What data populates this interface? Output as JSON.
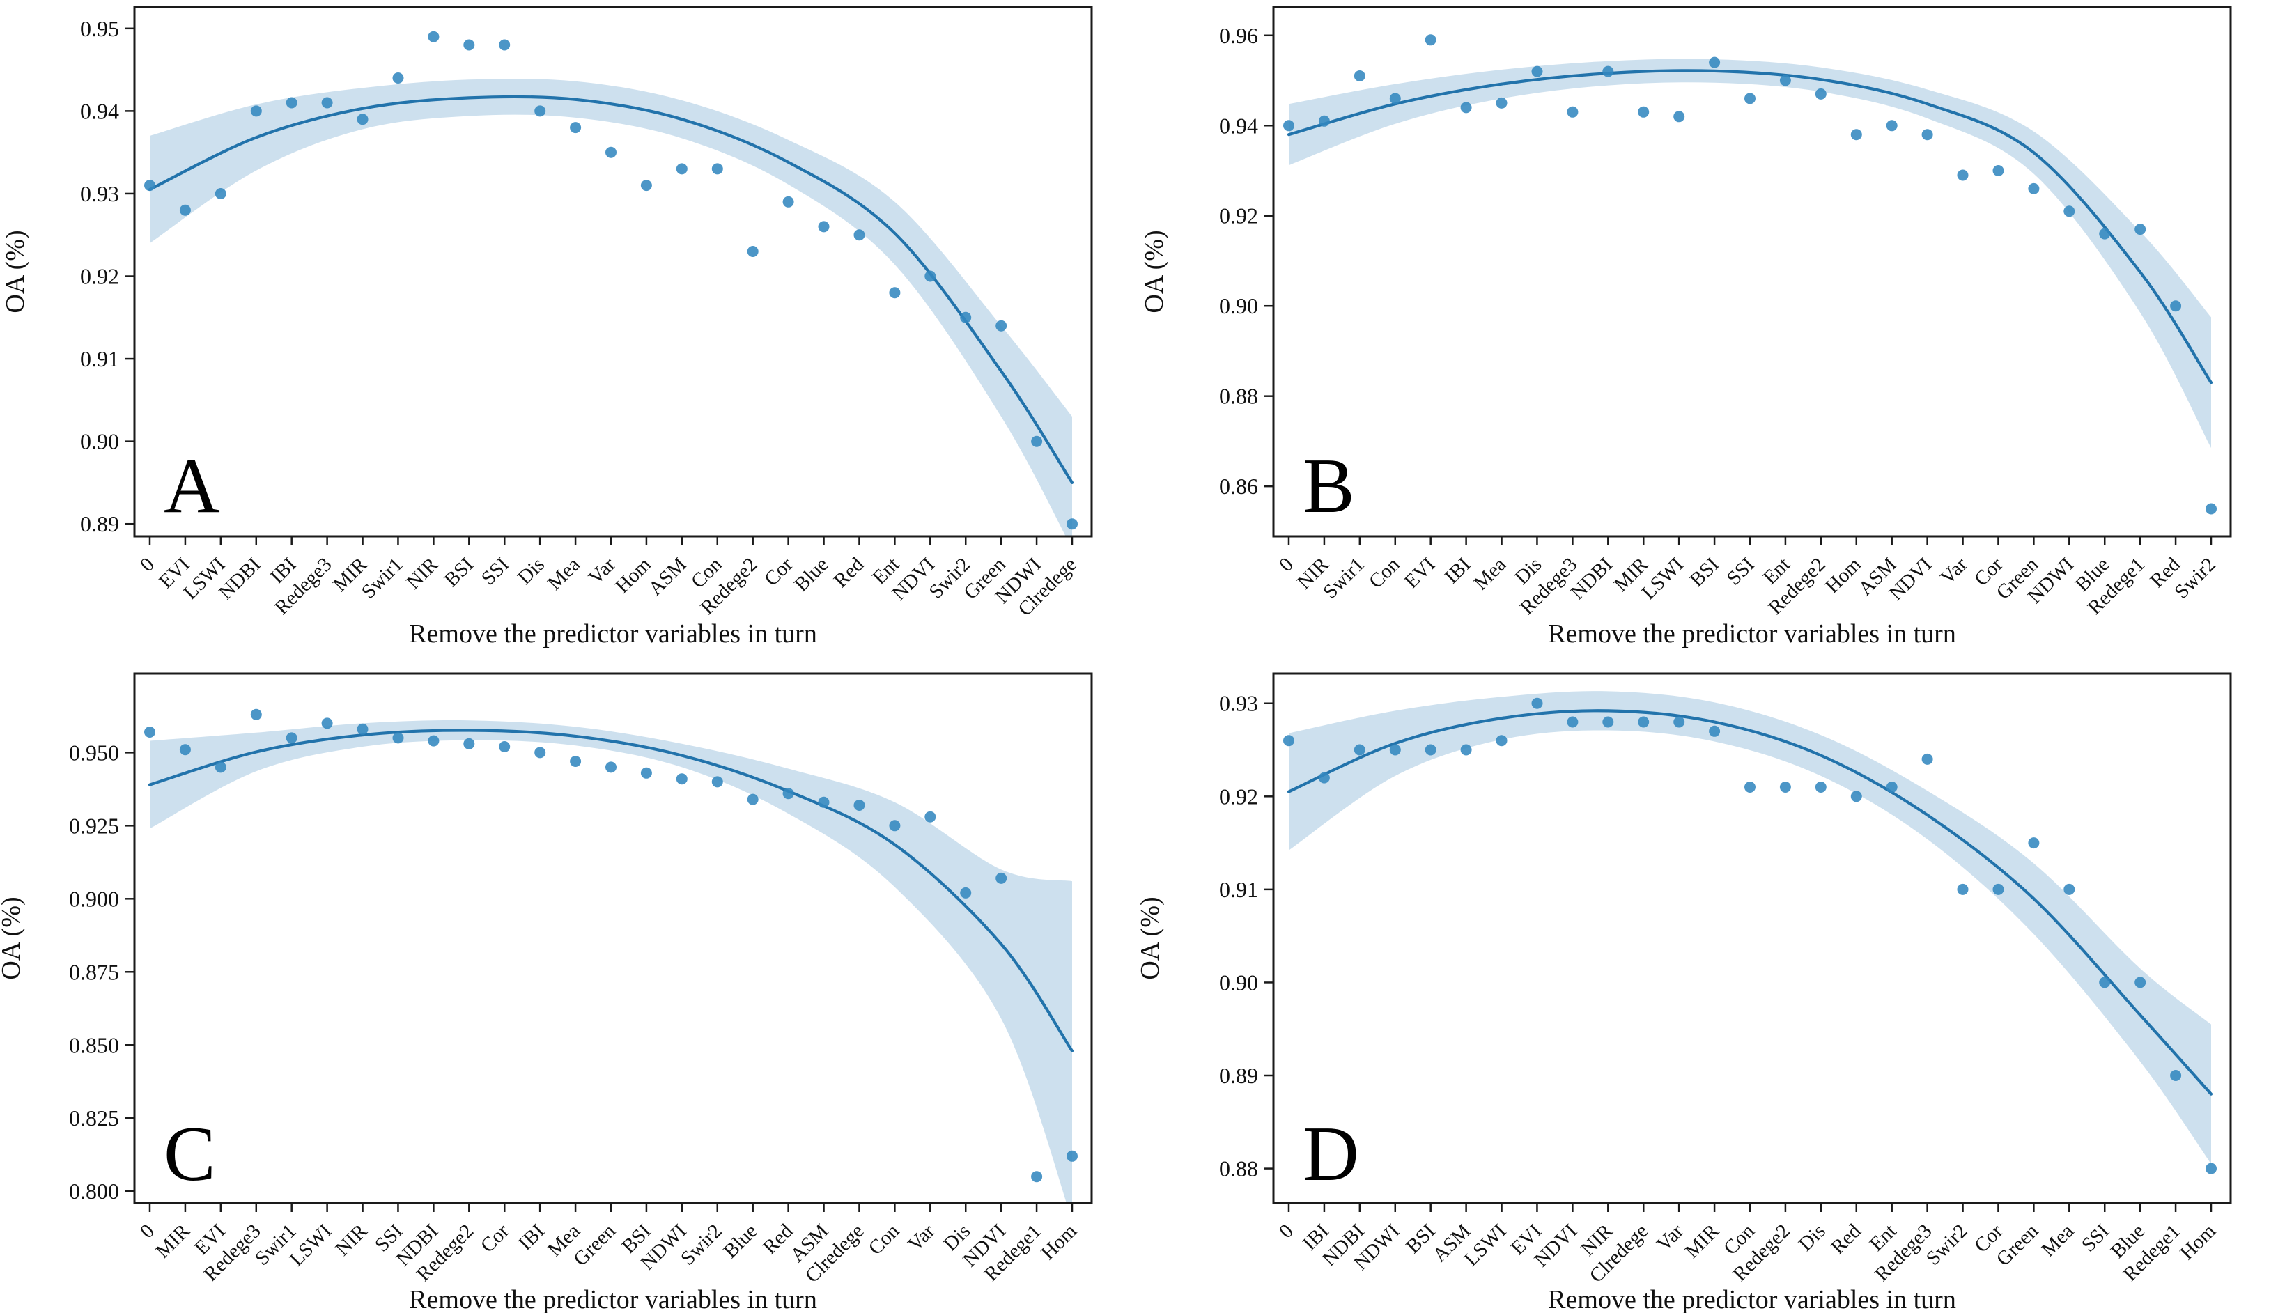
{
  "figure": {
    "type": "scatter-regression-grid",
    "background": "#ffffff",
    "colors": {
      "point": "#3387bf",
      "line": "#2273ab",
      "band": "#1f77b4",
      "band_opacity": 0.16,
      "axis": "#1a1a1a",
      "text": "#111111"
    }
  },
  "chart_data": [
    {
      "type": "scatter",
      "panel_letter": "A",
      "title": "",
      "xlabel": "Remove the predictor variables in turn",
      "ylabel": "OA (%)",
      "categories": [
        "0",
        "EVI",
        "LSWI",
        "NDBI",
        "IBI",
        "Redege3",
        "MIR",
        "Swir1",
        "NIR",
        "BSI",
        "SSI",
        "Dis",
        "Mea",
        "Var",
        "Hom",
        "ASM",
        "Con",
        "Redege2",
        "Cor",
        "Blue",
        "Red",
        "Ent",
        "NDVI",
        "Swir2",
        "Green",
        "NDWI",
        "Clredege"
      ],
      "values": [
        0.931,
        0.928,
        0.93,
        0.94,
        0.941,
        0.941,
        0.939,
        0.944,
        0.949,
        0.948,
        0.948,
        0.94,
        0.938,
        0.935,
        0.931,
        0.933,
        0.933,
        0.923,
        0.929,
        0.926,
        0.925,
        0.918,
        0.92,
        0.915,
        0.914,
        0.9,
        0.89
      ],
      "y_tick_labels": [
        "0.95",
        "0.94",
        "0.93",
        "0.92",
        "0.91",
        "0.90",
        "0.89"
      ],
      "y_tick_values": [
        0.95,
        0.94,
        0.93,
        0.92,
        0.91,
        0.9,
        0.89
      ],
      "ylim": [
        0.8885,
        0.9526
      ],
      "grid": false,
      "legend": "none",
      "trend": {
        "idx": [
          0,
          3,
          6,
          9,
          12,
          15,
          18,
          21,
          24,
          26
        ],
        "y": [
          0.9305,
          0.9368,
          0.9403,
          0.9416,
          0.9414,
          0.939,
          0.9338,
          0.9252,
          0.9085,
          0.895
        ],
        "upper": [
          0.937,
          0.9408,
          0.9428,
          0.9438,
          0.9436,
          0.9413,
          0.9365,
          0.929,
          0.914,
          0.903
        ],
        "lower": [
          0.924,
          0.9328,
          0.9378,
          0.9394,
          0.9392,
          0.9367,
          0.9311,
          0.9214,
          0.903,
          0.887
        ]
      }
    },
    {
      "type": "scatter",
      "panel_letter": "B",
      "title": "",
      "xlabel": "Remove the predictor variables in turn",
      "ylabel": "OA (%)",
      "categories": [
        "0",
        "NIR",
        "Swir1",
        "Con",
        "EVI",
        "IBI",
        "Mea",
        "Dis",
        "Redege3",
        "NDBI",
        "MIR",
        "LSWI",
        "BSI",
        "SSI",
        "Ent",
        "Redege2",
        "Hom",
        "ASM",
        "NDVI",
        "Var",
        "Cor",
        "Green",
        "NDWI",
        "Blue",
        "Redege1",
        "Red",
        "Swir2"
      ],
      "values": [
        0.94,
        0.941,
        0.951,
        0.946,
        0.959,
        0.944,
        0.945,
        0.952,
        0.943,
        0.952,
        0.943,
        0.942,
        0.954,
        0.946,
        0.95,
        0.947,
        0.938,
        0.94,
        0.938,
        0.929,
        0.93,
        0.926,
        0.921,
        0.916,
        0.917,
        0.9,
        0.855
      ],
      "y_tick_labels": [
        "0.96",
        "0.94",
        "0.92",
        "0.90",
        "0.88",
        "0.86"
      ],
      "y_tick_values": [
        0.96,
        0.94,
        0.92,
        0.9,
        0.88,
        0.86
      ],
      "ylim": [
        0.8489,
        0.9663
      ],
      "grid": false,
      "legend": "none",
      "trend": {
        "idx": [
          0,
          3,
          6,
          9,
          12,
          15,
          18,
          21,
          24,
          26
        ],
        "y": [
          0.938,
          0.9448,
          0.9492,
          0.9516,
          0.9521,
          0.9502,
          0.9448,
          0.934,
          0.9075,
          0.883
        ],
        "upper": [
          0.9448,
          0.9492,
          0.9524,
          0.9543,
          0.9547,
          0.9529,
          0.948,
          0.9387,
          0.9165,
          0.8975
        ],
        "lower": [
          0.9312,
          0.9404,
          0.946,
          0.9489,
          0.9495,
          0.9475,
          0.9416,
          0.9293,
          0.8985,
          0.8685
        ]
      }
    },
    {
      "type": "scatter",
      "panel_letter": "C",
      "title": "",
      "xlabel": "Remove the predictor variables in turn",
      "ylabel": "OA (%)",
      "categories": [
        "0",
        "MIR",
        "EVI",
        "Redege3",
        "Swir1",
        "LSWI",
        "NIR",
        "SSI",
        "NDBI",
        "Redege2",
        "Cor",
        "IBI",
        "Mea",
        "Green",
        "BSI",
        "NDWI",
        "Swir2",
        "Blue",
        "Red",
        "ASM",
        "Clredege",
        "Con",
        "Var",
        "Dis",
        "NDVI",
        "Redege1",
        "Hom"
      ],
      "values": [
        0.957,
        0.951,
        0.945,
        0.963,
        0.955,
        0.96,
        0.958,
        0.955,
        0.954,
        0.953,
        0.952,
        0.95,
        0.947,
        0.945,
        0.943,
        0.941,
        0.94,
        0.934,
        0.936,
        0.933,
        0.932,
        0.925,
        0.928,
        0.902,
        0.907,
        0.805,
        0.812
      ],
      "y_tick_labels": [
        "0.950",
        "0.925",
        "0.900",
        "0.875",
        "0.850",
        "0.825",
        "0.800"
      ],
      "y_tick_values": [
        0.95,
        0.925,
        0.9,
        0.875,
        0.85,
        0.825,
        0.8
      ],
      "ylim": [
        0.796,
        0.977
      ],
      "grid": false,
      "legend": "none",
      "trend": {
        "idx": [
          0,
          3,
          6,
          9,
          12,
          15,
          18,
          21,
          24,
          26
        ],
        "y": [
          0.939,
          0.9502,
          0.956,
          0.9576,
          0.9556,
          0.949,
          0.9368,
          0.9185,
          0.8845,
          0.848
        ],
        "upper": [
          0.954,
          0.9568,
          0.96,
          0.961,
          0.9588,
          0.953,
          0.9445,
          0.933,
          0.91,
          0.906
        ],
        "lower": [
          0.924,
          0.9436,
          0.952,
          0.9542,
          0.9524,
          0.945,
          0.9291,
          0.904,
          0.859,
          0.79
        ]
      }
    },
    {
      "type": "scatter",
      "panel_letter": "D",
      "title": "",
      "xlabel": "Remove the predictor variables in turn",
      "ylabel": "OA (%)",
      "categories": [
        "0",
        "IBI",
        "NDBI",
        "NDWI",
        "BSI",
        "ASM",
        "LSWI",
        "EVI",
        "NDVI",
        "NIR",
        "Clredege",
        "Var",
        "MIR",
        "Con",
        "Redege2",
        "Dis",
        "Red",
        "Ent",
        "Redege3",
        "Swir2",
        "Cor",
        "Green",
        "Mea",
        "SSI",
        "Blue",
        "Redege1",
        "Hom"
      ],
      "values": [
        0.926,
        0.922,
        0.925,
        0.925,
        0.925,
        0.925,
        0.926,
        0.93,
        0.928,
        0.928,
        0.928,
        0.928,
        0.927,
        0.921,
        0.921,
        0.921,
        0.92,
        0.921,
        0.924,
        0.91,
        0.91,
        0.915,
        0.91,
        0.9,
        0.9,
        0.89,
        0.88
      ],
      "y_tick_labels": [
        "0.93",
        "0.92",
        "0.91",
        "0.90",
        "0.89",
        "0.88"
      ],
      "y_tick_values": [
        0.93,
        0.92,
        0.91,
        0.9,
        0.89,
        0.88
      ],
      "ylim": [
        0.8763,
        0.9332
      ],
      "grid": false,
      "legend": "none",
      "trend": {
        "idx": [
          0,
          3,
          6,
          9,
          12,
          15,
          18,
          21,
          24,
          26
        ],
        "y": [
          0.9205,
          0.9257,
          0.9284,
          0.9292,
          0.928,
          0.9244,
          0.918,
          0.909,
          0.8965,
          0.888
        ],
        "upper": [
          0.9268,
          0.9292,
          0.9307,
          0.9313,
          0.9301,
          0.9266,
          0.9206,
          0.9128,
          0.9015,
          0.8955
        ],
        "lower": [
          0.9142,
          0.9222,
          0.9261,
          0.9271,
          0.9259,
          0.9222,
          0.9154,
          0.9052,
          0.8915,
          0.8805
        ]
      }
    }
  ]
}
